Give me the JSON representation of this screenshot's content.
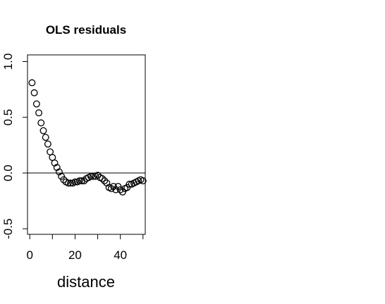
{
  "chart_data": {
    "type": "scatter",
    "title": "OLS residuals",
    "xlabel": "distance",
    "ylabel": "",
    "xlim": [
      -1,
      51
    ],
    "ylim": [
      -0.55,
      1.06
    ],
    "x_ticks": [
      0,
      10,
      20,
      30,
      40,
      50
    ],
    "x_tick_labels": [
      "0",
      "",
      "20",
      "",
      "40",
      ""
    ],
    "y_ticks": [
      -0.5,
      0.0,
      0.5,
      1.0
    ],
    "y_tick_labels": [
      "-0.5",
      "0.0",
      "0.5",
      "1.0"
    ],
    "reference_line_y": 0,
    "grid": false,
    "marker": "open-circle",
    "series": [
      {
        "x": [
          1,
          2,
          3,
          4,
          5,
          6,
          7,
          8,
          9,
          10,
          11,
          12,
          13,
          14,
          15,
          16,
          17,
          18,
          19,
          20,
          21,
          22,
          23,
          24,
          25,
          26,
          27,
          28,
          29,
          30,
          31,
          32,
          33,
          34,
          35,
          36,
          37,
          38,
          39,
          40,
          41,
          42,
          43,
          44,
          45,
          46,
          47,
          48,
          49,
          50
        ],
        "y": [
          0.81,
          0.72,
          0.62,
          0.54,
          0.45,
          0.38,
          0.32,
          0.26,
          0.19,
          0.14,
          0.09,
          0.05,
          0.01,
          -0.03,
          -0.06,
          -0.08,
          -0.09,
          -0.09,
          -0.09,
          -0.08,
          -0.08,
          -0.07,
          -0.07,
          -0.07,
          -0.05,
          -0.04,
          -0.03,
          -0.03,
          -0.03,
          -0.02,
          -0.04,
          -0.05,
          -0.07,
          -0.09,
          -0.13,
          -0.14,
          -0.12,
          -0.15,
          -0.12,
          -0.15,
          -0.17,
          -0.14,
          -0.13,
          -0.1,
          -0.1,
          -0.09,
          -0.08,
          -0.07,
          -0.06,
          -0.07
        ]
      }
    ]
  }
}
